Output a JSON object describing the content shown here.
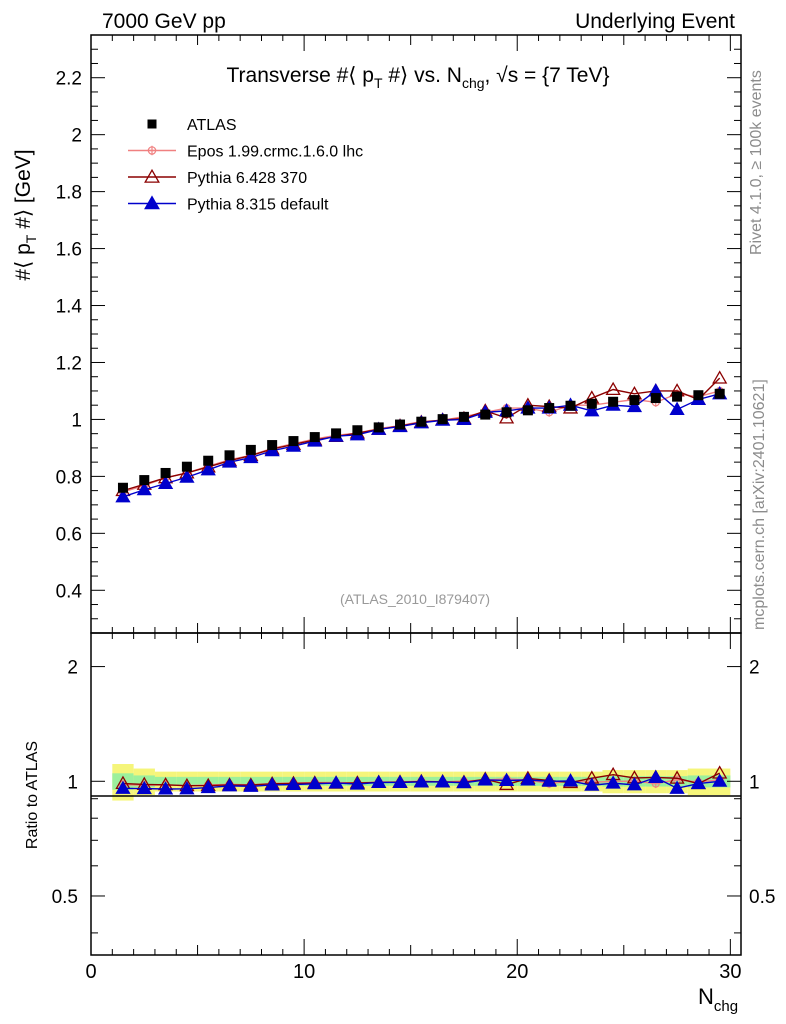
{
  "header": {
    "left": "7000 GeV pp",
    "right": "Underlying Event"
  },
  "side_labels": {
    "rivet": "Rivet 4.1.0, ≥ 100k events",
    "mcplots": "mcplots.cern.ch [arXiv:2401.10621]"
  },
  "chart_data": {
    "type": "line",
    "title": "Transverse #⟨ p_T #⟩ vs. N_chg, √s = {7 TeV}",
    "title_parts": {
      "pre": "Transverse #⟨ p",
      "sub1": "T",
      "mid": " #⟩ vs. N",
      "sub2": "chg",
      "post": ", √s = {7 TeV}"
    },
    "ylabel": "#⟨ p_T #⟩ [GeV]",
    "ylabel_parts": {
      "pre": "#⟨ p",
      "sub": "T",
      "post": " #⟩ [GeV]"
    },
    "xlabel": "N_chg",
    "xlabel_parts": {
      "main": "N",
      "sub": "chg"
    },
    "ratio_ylabel": "Ratio to ATLAS",
    "watermark": "(ATLAS_2010_I879407)",
    "xlim": [
      0,
      30.5
    ],
    "ylim": [
      0.25,
      2.35
    ],
    "ratio_ylim": [
      0.35,
      2.45
    ],
    "x_ticks": [
      0,
      10,
      20,
      30
    ],
    "y_ticks": [
      0.4,
      0.6,
      0.8,
      1,
      1.2,
      1.4,
      1.6,
      1.8,
      2,
      2.2
    ],
    "y_tick_labels": [
      "0.4",
      "0.6",
      "0.8",
      "1",
      "1.2",
      "1.4",
      "1.6",
      "1.8",
      "2",
      "2.2"
    ],
    "ratio_ticks": [
      0.5,
      1,
      2
    ],
    "ratio_tick_labels": [
      "0.5",
      "1",
      "2"
    ],
    "x": [
      1.5,
      2.5,
      3.5,
      4.5,
      5.5,
      6.5,
      7.5,
      8.5,
      9.5,
      10.5,
      11.5,
      12.5,
      13.5,
      14.5,
      15.5,
      16.5,
      17.5,
      18.5,
      19.5,
      20.5,
      21.5,
      22.5,
      23.5,
      24.5,
      25.5,
      26.5,
      27.5,
      28.5,
      29.5
    ],
    "series": [
      {
        "name": "ATLAS",
        "color": "#000000",
        "marker": "square",
        "values": [
          0.76,
          0.787,
          0.812,
          0.834,
          0.855,
          0.874,
          0.893,
          0.91,
          0.924,
          0.938,
          0.951,
          0.962,
          0.972,
          0.982,
          0.992,
          1.001,
          1.009,
          1.017,
          1.025,
          1.032,
          1.04,
          1.048,
          1.055,
          1.062,
          1.068,
          1.075,
          1.08,
          1.085,
          1.09
        ],
        "ratio_band": [
          0.11,
          0.08,
          0.06,
          0.06,
          0.06,
          0.06,
          0.06,
          0.06,
          0.06,
          0.06,
          0.06,
          0.06,
          0.06,
          0.06,
          0.06,
          0.06,
          0.06,
          0.06,
          0.06,
          0.06,
          0.06,
          0.06,
          0.06,
          0.07,
          0.07,
          0.07,
          0.07,
          0.08,
          0.08
        ]
      },
      {
        "name": "Epos 1.99.crmc.1.6.0 lhc",
        "color": "#f08080",
        "marker": "cross-circle",
        "values": [
          0.745,
          0.768,
          0.795,
          0.812,
          0.836,
          0.858,
          0.874,
          0.898,
          0.915,
          0.931,
          0.944,
          0.952,
          0.968,
          0.978,
          0.993,
          0.997,
          1.01,
          1.025,
          1.04,
          1.04,
          1.025,
          1.05,
          1.05,
          1.06,
          1.07,
          1.06,
          1.09,
          1.08,
          1.1
        ]
      },
      {
        "name": "Pythia 6.428 370",
        "color": "#8b0000",
        "marker": "triangle-open",
        "values": [
          0.75,
          0.772,
          0.795,
          0.812,
          0.833,
          0.855,
          0.873,
          0.896,
          0.912,
          0.928,
          0.94,
          0.952,
          0.965,
          0.977,
          0.99,
          0.998,
          1.003,
          1.03,
          1.005,
          1.05,
          1.045,
          1.04,
          1.075,
          1.105,
          1.09,
          1.1,
          1.1,
          1.07,
          1.145
        ]
      },
      {
        "name": "Pythia 8.315 default",
        "color": "#0000cc",
        "marker": "triangle-filled",
        "values": [
          0.728,
          0.753,
          0.775,
          0.797,
          0.823,
          0.85,
          0.866,
          0.89,
          0.906,
          0.924,
          0.941,
          0.946,
          0.965,
          0.975,
          0.988,
          0.997,
          1.0,
          1.025,
          1.03,
          1.04,
          1.04,
          1.05,
          1.03,
          1.05,
          1.045,
          1.1,
          1.035,
          1.07,
          1.09
        ]
      }
    ]
  }
}
